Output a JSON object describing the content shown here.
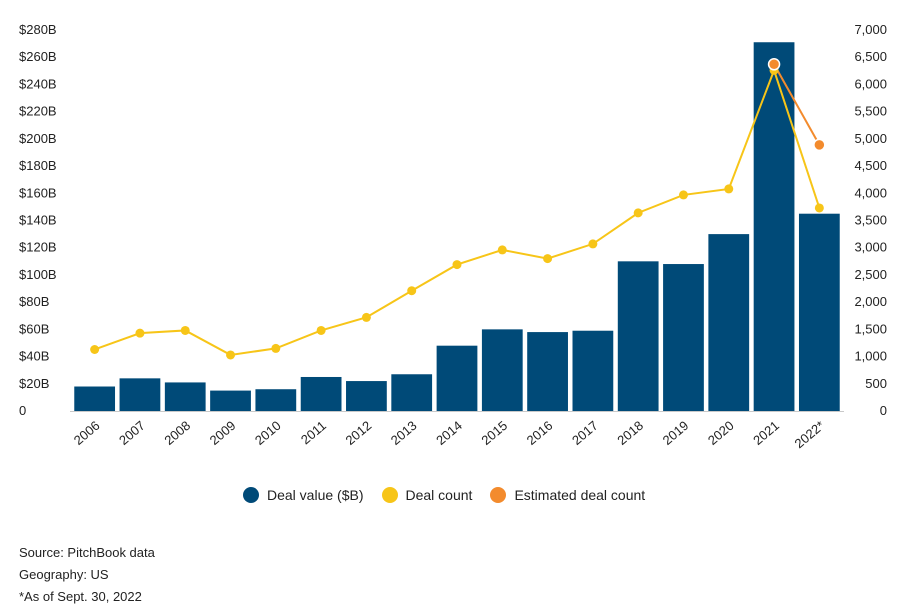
{
  "chart_data": {
    "type": "bar",
    "categories": [
      "2006",
      "2007",
      "2008",
      "2009",
      "2010",
      "2011",
      "2012",
      "2013",
      "2014",
      "2015",
      "2016",
      "2017",
      "2018",
      "2019",
      "2020",
      "2021",
      "2022*"
    ],
    "series": [
      {
        "name": "Deal value ($B)",
        "type": "bar",
        "axis": "left",
        "values": [
          18,
          24,
          21,
          15,
          16,
          25,
          22,
          27,
          48,
          60,
          58,
          59,
          110,
          108,
          130,
          271,
          145
        ]
      },
      {
        "name": "Deal count",
        "type": "line",
        "axis": "right",
        "values": [
          1130,
          1430,
          1480,
          1030,
          1150,
          1480,
          1720,
          2210,
          2690,
          2960,
          2800,
          3070,
          3640,
          3970,
          4080,
          6260,
          3730
        ]
      },
      {
        "name": "Estimated deal count",
        "type": "line",
        "axis": "right",
        "x": [
          "2021",
          "2022*"
        ],
        "values": [
          6370,
          4890
        ]
      }
    ],
    "left_axis": {
      "ticks": [
        "$280B",
        "$260B",
        "$240B",
        "$220B",
        "$200B",
        "$180B",
        "$160B",
        "$140B",
        "$120B",
        "$100B",
        "$80B",
        "$60B",
        "$40B",
        "$20B",
        "0"
      ],
      "ylim": [
        0,
        280
      ]
    },
    "right_axis": {
      "ticks": [
        "7,000",
        "6,500",
        "6,000",
        "5,500",
        "5,000",
        "4,500",
        "4,000",
        "3,500",
        "3,000",
        "2,500",
        "2,000",
        "1,500",
        "1,000",
        "500",
        "0"
      ],
      "ylim": [
        0,
        7000
      ]
    },
    "grid": false,
    "legend_position": "bottom"
  },
  "colors": {
    "bar": "#004a78",
    "deal_count": "#f7c518",
    "estimated": "#f38b2d"
  },
  "legend": [
    {
      "label": "Deal value ($B)",
      "color": "#004a78"
    },
    {
      "label": "Deal count",
      "color": "#f7c518"
    },
    {
      "label": "Estimated deal count",
      "color": "#f38b2d"
    }
  ],
  "footnotes": {
    "source": "Source: PitchBook data",
    "geography": "Geography: US",
    "asof": "*As of Sept. 30, 2022"
  }
}
